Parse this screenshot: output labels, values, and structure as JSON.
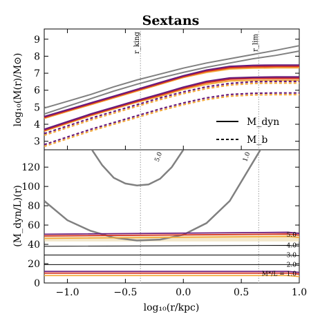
{
  "chart_data": [
    {
      "type": "line",
      "panel": "top",
      "title": "Sextans",
      "ylabel": "log₁₀(M(r)/M⊙)",
      "xlabel": "",
      "xlim": [
        -1.2,
        1.0
      ],
      "ylim": [
        2.5,
        9.6
      ],
      "yticks": [
        "3",
        "4",
        "5",
        "6",
        "7",
        "8",
        "9"
      ],
      "xticks_show_labels": false,
      "vlines": [
        {
          "x": -0.37,
          "label": "r_king"
        },
        {
          "x": 0.65,
          "label": "r_lim"
        }
      ],
      "legend": {
        "position": "lower-right",
        "entries": [
          {
            "label": "M_dyn",
            "style": "solid"
          },
          {
            "label": "M_b",
            "style": "dashed"
          }
        ]
      },
      "colors": {
        "gray": "#808080",
        "purple": "#6a1b7a",
        "red": "#d7301f",
        "orange": "#f2a93b"
      },
      "series": [
        {
          "color": "gray",
          "style": "solid",
          "x": [
            -1.2,
            -1.0,
            -0.8,
            -0.6,
            -0.4,
            -0.2,
            0.0,
            0.2,
            0.4,
            0.6,
            0.8,
            1.0
          ],
          "y": [
            4.95,
            5.35,
            5.75,
            6.2,
            6.6,
            6.95,
            7.3,
            7.6,
            7.85,
            8.1,
            8.35,
            8.62
          ]
        },
        {
          "color": "gray",
          "style": "solid",
          "x": [
            -1.2,
            -1.0,
            -0.8,
            -0.6,
            -0.4,
            -0.2,
            0.0,
            0.2,
            0.4,
            0.6,
            0.8,
            1.0
          ],
          "y": [
            4.6,
            5.05,
            5.5,
            5.95,
            6.35,
            6.72,
            7.05,
            7.35,
            7.6,
            7.85,
            8.05,
            8.3
          ]
        },
        {
          "color": "orange",
          "style": "solid",
          "x": [
            -1.2,
            -1.0,
            -0.8,
            -0.6,
            -0.4,
            -0.2,
            0.0,
            0.2,
            0.4,
            0.6,
            0.8,
            1.0
          ],
          "y": [
            4.35,
            4.75,
            5.15,
            5.55,
            5.95,
            6.35,
            6.75,
            7.05,
            7.25,
            7.3,
            7.32,
            7.32
          ]
        },
        {
          "color": "red",
          "style": "solid",
          "x": [
            -1.2,
            -1.0,
            -0.8,
            -0.6,
            -0.4,
            -0.2,
            0.0,
            0.2,
            0.4,
            0.6,
            0.8,
            1.0
          ],
          "y": [
            4.4,
            4.8,
            5.2,
            5.6,
            6.0,
            6.4,
            6.8,
            7.12,
            7.33,
            7.38,
            7.4,
            7.4
          ]
        },
        {
          "color": "purple",
          "style": "solid",
          "x": [
            -1.2,
            -1.0,
            -0.8,
            -0.6,
            -0.4,
            -0.2,
            0.0,
            0.2,
            0.4,
            0.6,
            0.8,
            1.0
          ],
          "y": [
            4.45,
            4.85,
            5.25,
            5.65,
            6.05,
            6.45,
            6.85,
            7.18,
            7.4,
            7.46,
            7.48,
            7.48
          ]
        },
        {
          "color": "orange",
          "style": "solid",
          "x": [
            -1.2,
            -1.0,
            -0.8,
            -0.6,
            -0.4,
            -0.2,
            0.0,
            0.2,
            0.4,
            0.6,
            0.8,
            1.0
          ],
          "y": [
            3.6,
            4.05,
            4.5,
            4.9,
            5.3,
            5.65,
            6.05,
            6.35,
            6.55,
            6.58,
            6.58,
            6.58
          ]
        },
        {
          "color": "red",
          "style": "solid",
          "x": [
            -1.2,
            -1.0,
            -0.8,
            -0.6,
            -0.4,
            -0.2,
            0.0,
            0.2,
            0.4,
            0.6,
            0.8,
            1.0
          ],
          "y": [
            3.65,
            4.1,
            4.55,
            4.95,
            5.35,
            5.72,
            6.12,
            6.45,
            6.65,
            6.7,
            6.7,
            6.7
          ]
        },
        {
          "color": "purple",
          "style": "solid",
          "x": [
            -1.2,
            -1.0,
            -0.8,
            -0.6,
            -0.4,
            -0.2,
            0.0,
            0.2,
            0.4,
            0.6,
            0.8,
            1.0
          ],
          "y": [
            3.7,
            4.15,
            4.6,
            5.0,
            5.4,
            5.78,
            6.18,
            6.52,
            6.72,
            6.76,
            6.78,
            6.78
          ]
        },
        {
          "color": "orange",
          "style": "dashed",
          "x": [
            -1.2,
            -1.0,
            -0.8,
            -0.6,
            -0.4,
            -0.2,
            0.0,
            0.2,
            0.4,
            0.6,
            0.8,
            1.0
          ],
          "y": [
            3.35,
            3.8,
            4.25,
            4.65,
            5.05,
            5.45,
            5.8,
            6.1,
            6.3,
            6.4,
            6.42,
            6.42
          ]
        },
        {
          "color": "purple",
          "style": "dashed",
          "x": [
            -1.2,
            -1.0,
            -0.8,
            -0.6,
            -0.4,
            -0.2,
            0.0,
            0.2,
            0.4,
            0.6,
            0.8,
            1.0
          ],
          "y": [
            3.45,
            3.9,
            4.35,
            4.75,
            5.15,
            5.55,
            5.9,
            6.2,
            6.4,
            6.5,
            6.52,
            6.52
          ]
        },
        {
          "color": "orange",
          "style": "dashed",
          "x": [
            -1.2,
            -1.0,
            -0.8,
            -0.6,
            -0.4,
            -0.2,
            0.0,
            0.2,
            0.4,
            0.6,
            0.8,
            1.0
          ],
          "y": [
            2.7,
            3.15,
            3.6,
            4.0,
            4.4,
            4.8,
            5.15,
            5.45,
            5.65,
            5.72,
            5.74,
            5.74
          ]
        },
        {
          "color": "purple",
          "style": "dashed",
          "x": [
            -1.2,
            -1.0,
            -0.8,
            -0.6,
            -0.4,
            -0.2,
            0.0,
            0.2,
            0.4,
            0.6,
            0.8,
            1.0
          ],
          "y": [
            2.8,
            3.25,
            3.7,
            4.1,
            4.5,
            4.9,
            5.25,
            5.55,
            5.75,
            5.82,
            5.84,
            5.84
          ]
        }
      ]
    },
    {
      "type": "line",
      "panel": "bottom",
      "title": "",
      "ylabel": "(M_dyn/L)(r)",
      "xlabel": "log₁₀(r/kpc)",
      "xlim": [
        -1.2,
        1.0
      ],
      "ylim": [
        0,
        138
      ],
      "xticks": [
        "−1.0",
        "−0.5",
        "0.0",
        "0.5",
        "1.0"
      ],
      "yticks": [
        "0",
        "20",
        "40",
        "60",
        "80",
        "100",
        "120"
      ],
      "vlines": [
        {
          "x": -0.37
        },
        {
          "x": 0.65
        }
      ],
      "contours": [
        {
          "label": "5.0",
          "label_x": -0.2,
          "label_y": 130,
          "x": [
            -0.8,
            -0.7,
            -0.6,
            -0.5,
            -0.4,
            -0.3,
            -0.2,
            -0.1,
            0.0
          ],
          "y": [
            140,
            122,
            109,
            103,
            101,
            102,
            108,
            120,
            138
          ]
        },
        {
          "label": "1.0",
          "label_x": 0.56,
          "label_y": 130,
          "x": [
            -1.2,
            -1.0,
            -0.8,
            -0.6,
            -0.4,
            -0.2,
            0.0,
            0.2,
            0.4,
            0.6,
            0.7
          ],
          "y": [
            85,
            65,
            54,
            47,
            44,
            45,
            50,
            62,
            85,
            125,
            145
          ]
        }
      ],
      "flat_lines": [
        {
          "label": "5.0",
          "y_left": 48,
          "y_right": 50,
          "colored": true
        },
        {
          "label": "4.0",
          "y_left": 38,
          "y_right": 39,
          "colored": false
        },
        {
          "label": "3.0",
          "y_left": 29,
          "y_right": 29,
          "colored": false
        },
        {
          "label": "2.0",
          "y_left": 19,
          "y_right": 19,
          "colored": false
        },
        {
          "label": "M*/L = 1.0",
          "y_left": 9.5,
          "y_right": 9.5,
          "colored": true
        }
      ]
    }
  ]
}
